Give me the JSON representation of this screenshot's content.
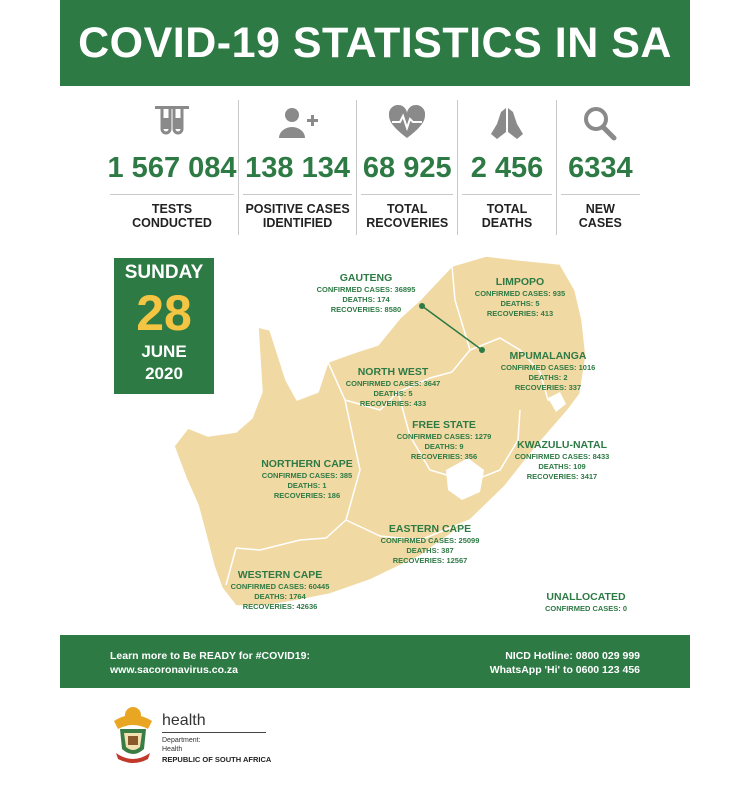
{
  "header": {
    "title": "COVID-19 STATISTICS IN SA"
  },
  "stats": [
    {
      "icon": "test-tubes-icon",
      "value": "1 567 084",
      "label_line1": "TESTS",
      "label_line2": "CONDUCTED"
    },
    {
      "icon": "add-person-icon",
      "value": "138 134",
      "label_line1": "POSITIVE CASES",
      "label_line2": "IDENTIFIED"
    },
    {
      "icon": "heartbeat-icon",
      "value": "68 925",
      "label_line1": "TOTAL",
      "label_line2": "RECOVERIES"
    },
    {
      "icon": "praying-hands-icon",
      "value": "2 456",
      "label_line1": "TOTAL",
      "label_line2": "DEATHS"
    },
    {
      "icon": "magnifier-icon",
      "value": "6334",
      "label_line1": "NEW",
      "label_line2": "CASES"
    }
  ],
  "date": {
    "day": "SUNDAY",
    "number": "28",
    "month": "JUNE",
    "year": "2020"
  },
  "provinces": [
    {
      "name": "GAUTENG",
      "confirmed": "CONFIRMED CASES: 36895",
      "deaths": "DEATHS: 174",
      "recoveries": "RECOVERIES: 8580"
    },
    {
      "name": "LIMPOPO",
      "confirmed": "CONFIRMED CASES: 935",
      "deaths": "DEATHS: 5",
      "recoveries": "RECOVERIES: 413"
    },
    {
      "name": "MPUMALANGA",
      "confirmed": "CONFIRMED CASES: 1016",
      "deaths": "DEATHS: 2",
      "recoveries": "RECOVERIES: 337"
    },
    {
      "name": "NORTH WEST",
      "confirmed": "CONFIRMED CASES: 3647",
      "deaths": "DEATHS: 5",
      "recoveries": "RECOVERIES: 433"
    },
    {
      "name": "FREE STATE",
      "confirmed": "CONFIRMED CASES: 1279",
      "deaths": "DEATHS: 9",
      "recoveries": "RECOVERIES: 356"
    },
    {
      "name": "KWAZULU-NATAL",
      "confirmed": "CONFIRMED CASES: 8433",
      "deaths": "DEATHS: 109",
      "recoveries": "RECOVERIES: 3417"
    },
    {
      "name": "NORTHERN CAPE",
      "confirmed": "CONFIRMED CASES: 385",
      "deaths": "DEATHS: 1",
      "recoveries": "RECOVERIES: 186"
    },
    {
      "name": "EASTERN CAPE",
      "confirmed": "CONFIRMED CASES: 25099",
      "deaths": "DEATHS: 387",
      "recoveries": "RECOVERIES: 12567"
    },
    {
      "name": "WESTERN CAPE",
      "confirmed": "CONFIRMED CASES: 60445",
      "deaths": "DEATHS: 1764",
      "recoveries": "RECOVERIES: 42636"
    },
    {
      "name": "UNALLOCATED",
      "confirmed": "CONFIRMED CASES: 0"
    }
  ],
  "footer": {
    "left_line1": "Learn more to Be READY for #COVID19:",
    "left_line2": "www.sacoronavirus.co.za",
    "right_line1": "NICD Hotline: 0800 029 999",
    "right_line2": "WhatsApp 'Hi' to 0600 123 456"
  },
  "department": {
    "name": "health",
    "line1": "Department:",
    "line2": "Health",
    "country": "REPUBLIC OF SOUTH AFRICA"
  },
  "colors": {
    "brand_green": "#2e7a45",
    "accent_yellow": "#f4c443",
    "map_fill": "#f1d9a3"
  }
}
